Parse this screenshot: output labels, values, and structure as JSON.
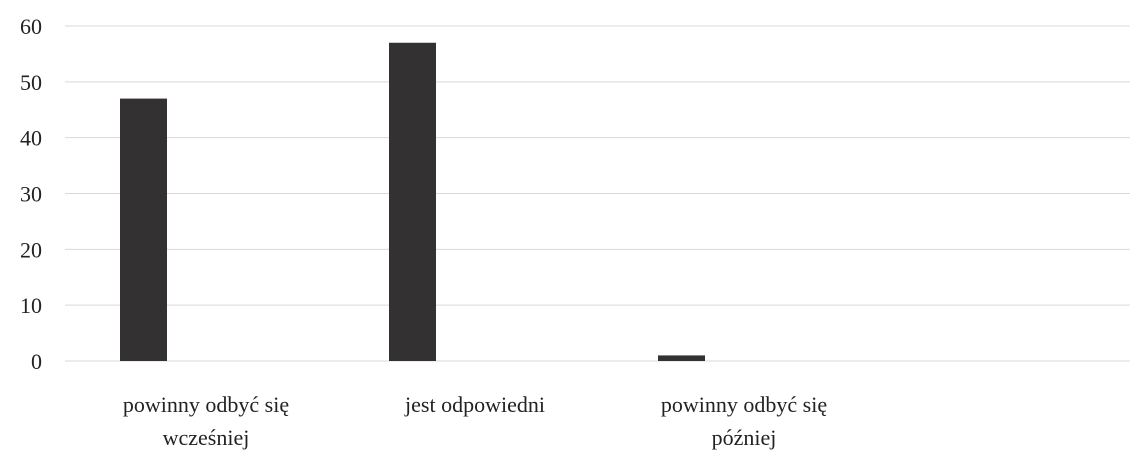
{
  "chart_data": {
    "type": "bar",
    "categories": [
      [
        "powinny odbyć się",
        "wcześniej"
      ],
      [
        "jest odpowiedni"
      ],
      [
        "powinny odbyć się",
        "później"
      ]
    ],
    "values": [
      47,
      57,
      1
    ],
    "title": "",
    "xlabel": "",
    "ylabel": "",
    "ylim": [
      0,
      60
    ],
    "yticks": [
      0,
      10,
      20,
      30,
      40,
      50,
      60
    ],
    "grid": true,
    "legend": "none",
    "colors": {
      "bar": "#333132",
      "grid": "#d9d9d9",
      "text": "#222222"
    }
  }
}
